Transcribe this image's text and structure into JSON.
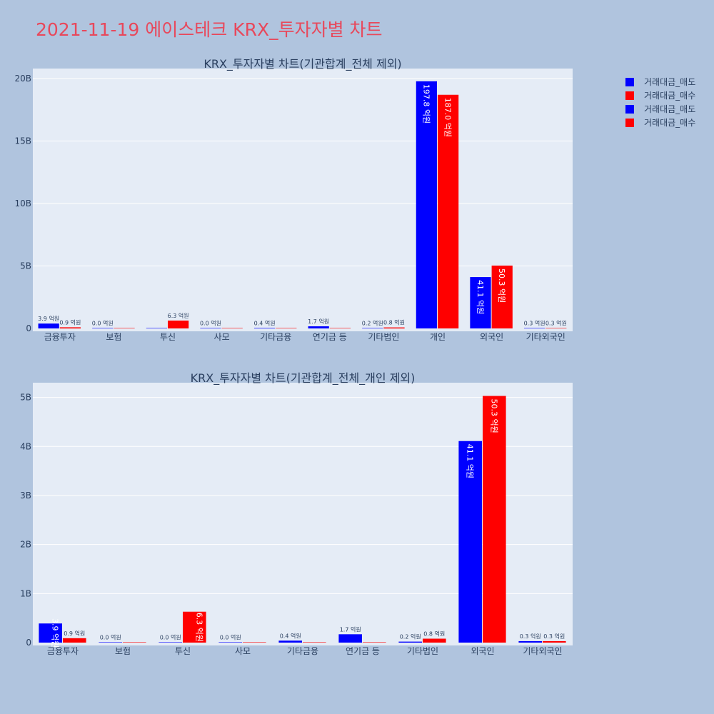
{
  "page_title": "2021-11-19 에이스테크 KRX_투자자별 차트",
  "colors": {
    "sell": "#0000ff",
    "buy": "#ff0000",
    "title": "#e8485b"
  },
  "legend": [
    {
      "label": "거래대금_매도",
      "color": "#0000ff"
    },
    {
      "label": "거래대금_매수",
      "color": "#ff0000"
    },
    {
      "label": "거래대금_매도",
      "color": "#0000ff"
    },
    {
      "label": "거래대금_매수",
      "color": "#ff0000"
    }
  ],
  "chart_data": [
    {
      "type": "bar",
      "title": "KRX_투자자별 차트(기관합계_전체 제외)",
      "categories": [
        "금융투자",
        "보험",
        "투신",
        "사모",
        "기타금융",
        "연기금 등",
        "기타법인",
        "개인",
        "외국인",
        "기타외국인"
      ],
      "series": [
        {
          "name": "거래대금_매도",
          "color": "#0000ff",
          "values": [
            0.39,
            0.0,
            0.0,
            0.0,
            0.04,
            0.17,
            0.02,
            19.78,
            4.11,
            0.03
          ],
          "labels": [
            "3.9 억원",
            "0.0 억원",
            "",
            "0.0 억원",
            "0.4 억원",
            "1.7 억원",
            "0.2 억원",
            "197.8 억원",
            "41.1 억원",
            "0.3 억원"
          ]
        },
        {
          "name": "거래대금_매수",
          "color": "#ff0000",
          "values": [
            0.09,
            0.0,
            0.63,
            0.0,
            0.0,
            0.0,
            0.08,
            18.7,
            5.03,
            0.03
          ],
          "labels": [
            "0.9 억원",
            "",
            "6.3 억원",
            "",
            "",
            "",
            "0.8 억원",
            "187.0 억원",
            "50.3 억원",
            "0.3 억원"
          ]
        }
      ],
      "yticks": [
        "0",
        "5B",
        "10B",
        "15B",
        "20B"
      ],
      "ytick_values": [
        0,
        5,
        10,
        15,
        20
      ],
      "ylim": [
        0,
        20.8
      ],
      "unit": "B"
    },
    {
      "type": "bar",
      "title": "KRX_투자자별 차트(기관합계_전체_개인 제외)",
      "categories": [
        "금융투자",
        "보험",
        "투신",
        "사모",
        "기타금융",
        "연기금 등",
        "기타법인",
        "외국인",
        "기타외국인"
      ],
      "series": [
        {
          "name": "거래대금_매도",
          "color": "#0000ff",
          "values": [
            0.39,
            0.0,
            0.0,
            0.0,
            0.04,
            0.17,
            0.02,
            4.11,
            0.03
          ],
          "labels": [
            "3.9 억원",
            "0.0 억원",
            "0.0 억원",
            "0.0 억원",
            "0.4 억원",
            "1.7 억원",
            "0.2 억원",
            "41.1 억원",
            "0.3 억원"
          ]
        },
        {
          "name": "거래대금_매수",
          "color": "#ff0000",
          "values": [
            0.09,
            0.0,
            0.63,
            0.0,
            0.0,
            0.0,
            0.08,
            5.03,
            0.03
          ],
          "labels": [
            "0.9 억원",
            "",
            "6.3 억원",
            "",
            "",
            "",
            "0.8 억원",
            "50.3 억원",
            "0.3 억원"
          ]
        }
      ],
      "yticks": [
        "0",
        "1B",
        "2B",
        "3B",
        "4B",
        "5B"
      ],
      "ytick_values": [
        0,
        1,
        2,
        3,
        4,
        5
      ],
      "ylim": [
        0,
        5.3
      ],
      "unit": "B"
    }
  ]
}
